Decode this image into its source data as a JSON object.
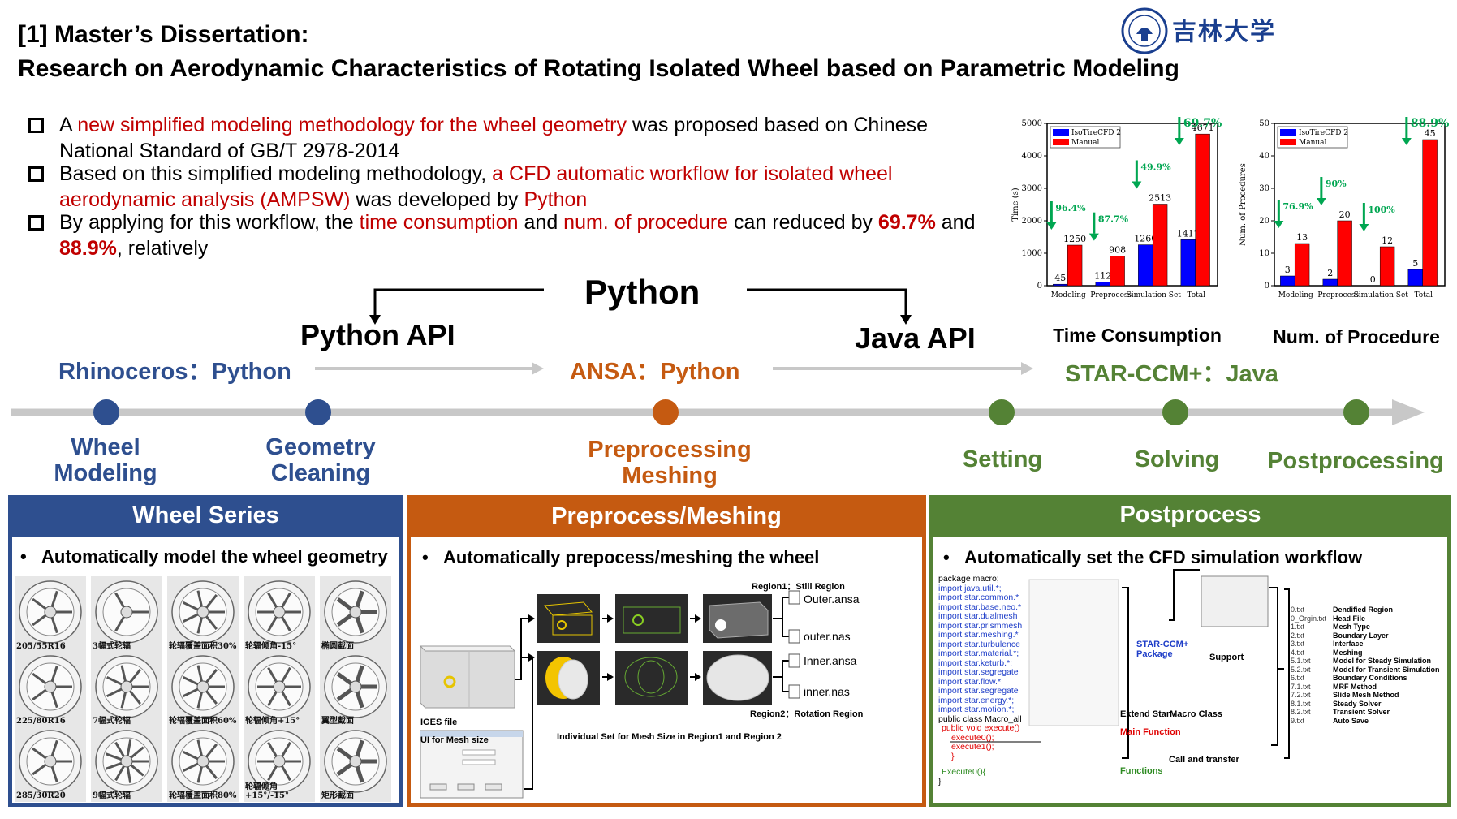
{
  "header": {
    "line1": "[1] Master’s Dissertation:",
    "line2": "Research on Aerodynamic Characteristics of Rotating Isolated Wheel based on Parametric Modeling",
    "logo_text": "吉林大学",
    "accent_color": "#1a3f8f"
  },
  "bullets": {
    "b1_a": "A ",
    "b1_red": "new simplified modeling methodology for the wheel geometry",
    "b1_b": " was proposed based on Chinese National Standard of GB/T 2978-2014",
    "b2_a": "Based on this simplified modeling methodology, ",
    "b2_red": "a CFD automatic workflow for isolated wheel aerodynamic analysis (AMPSW)",
    "b2_b": " was developed by ",
    "b2_red2": "Python",
    "b3_a": "By applying for this workflow, the ",
    "b3_red": "time consumption",
    "b3_b": " and ",
    "b3_red2": "num. of procedure",
    "b3_c": " can reduced by ",
    "b3_val1": "69.7%",
    "b3_d": " and ",
    "b3_val2": "88.9%",
    "b3_e": ", relatively"
  },
  "flow": {
    "python": "Python",
    "python_api": "Python API",
    "java_api": "Java API",
    "tool1": "Rhinoceros：Python",
    "tool2": "ANSA：Python",
    "tool3": "STAR-CCM+：Java",
    "stages": [
      "Wheel Modeling",
      "Geometry Cleaning",
      "Preprocessing Meshing",
      "Setting",
      "Solving",
      "Postprocessing"
    ],
    "colors": {
      "blue": "#2e4f8f",
      "orange": "#c55a11",
      "green": "#548235"
    }
  },
  "panels": {
    "wheel": {
      "title": "Wheel Series",
      "bullet": "Automatically model the wheel geometry",
      "labels": [
        "205/55R16",
        "3幅式轮辐",
        "轮辐覆盖面积30%",
        "轮辐倾角-15°",
        "椭圆截面",
        "225/80R16",
        "7幅式轮辐",
        "轮辐覆盖面积60%",
        "轮辐倾角+15°",
        "翼型截面",
        "285/30R20",
        "9幅式轮辐",
        "轮辐覆盖面积80%",
        "轮辐倾角 +15°/-15°",
        "矩形截面"
      ]
    },
    "mesh": {
      "title": "Preprocess/Meshing",
      "bullet": "Automatically prepocess/meshing the wheel",
      "region1": "Region1：Still Region",
      "region2": "Region2：Rotation Region",
      "files": [
        "Outer.ansa",
        "outer.nas",
        "Inner.ansa",
        "inner.nas"
      ],
      "iges": "IGES file",
      "ui_label": "UI for Mesh size",
      "caption": "Individual Set for Mesh Size in Region1 and Region 2"
    },
    "post": {
      "title": "Postprocess",
      "bullet": "Automatically set the CFD simulation workflow",
      "code": [
        "package macro;",
        "import java.util.*;",
        "import star.common.*",
        "import star.base.neo.*",
        "import star.dualmesh",
        "import star.prismmesh",
        "import star.meshing.*",
        "import star.turbulence",
        "import star.material.*;",
        "import star.keturb.*;",
        "import star.segregate",
        "import star.flow.*;",
        "import star.segregate",
        "import star.energy.*;",
        "import star.motion.*;",
        "public class Macro_all",
        "public void execute()",
        "execute0();",
        "execute1();",
        "}",
        "Execute0(){",
        "}"
      ],
      "package_label": "STAR-CCM+ Package",
      "support": "Support",
      "extend": "Extend StarMacro Class",
      "main_function": "Main Function",
      "functions": "Functions",
      "call": "Call and transfer",
      "file_list": [
        "0.txt",
        "0_Orgin.txt",
        "1.txt",
        "2.txt",
        "3.txt",
        "4.txt",
        "5.1.txt",
        "5.2.txt",
        "6.txt",
        "7.1.txt",
        "7.2.txt",
        "8.1.txt",
        "8.2.txt",
        "9.txt"
      ],
      "file_desc": [
        "Dendified Region",
        "Head File",
        "Mesh Type",
        "Boundary Layer",
        "Interface",
        "Meshing",
        "Model for Steady Simulation",
        "Model for Transient Simulation",
        "Boundary Conditions",
        "MRF Method",
        "Slide Mesh Method",
        "Steady Solver",
        "Transient Solver",
        "Auto Save"
      ]
    }
  },
  "chart_data": [
    {
      "type": "bar",
      "title": "Time Consumption",
      "ylabel": "Time (s)",
      "categories": [
        "Modeling",
        "Preprocess",
        "Simulation Set",
        "Total"
      ],
      "series": [
        {
          "name": "IsoTireCFD 2",
          "color": "#0000ff",
          "values": [
            45,
            112,
            1260,
            1417
          ]
        },
        {
          "name": "Manual",
          "color": "#ff0000",
          "values": [
            1250,
            908,
            2513,
            4671
          ]
        }
      ],
      "reductions": [
        "96.4%",
        "87.7%",
        "49.9%",
        "69.7%"
      ],
      "ylim": [
        0,
        5000
      ],
      "yticks": [
        0,
        1000,
        2000,
        3000,
        4000,
        5000
      ],
      "legend": "top-left"
    },
    {
      "type": "bar",
      "title": "Num. of Procedure",
      "ylabel": "Num. of Procedures",
      "categories": [
        "Modeling",
        "Preprocess",
        "Simulation Set",
        "Total"
      ],
      "series": [
        {
          "name": "IsoTireCFD 2",
          "color": "#0000ff",
          "values": [
            3,
            2,
            0,
            5
          ]
        },
        {
          "name": "Manual",
          "color": "#ff0000",
          "values": [
            13,
            20,
            12,
            45
          ]
        }
      ],
      "reductions": [
        "76.9%",
        "90%",
        "100%",
        "88.9%"
      ],
      "ylim": [
        0,
        50
      ],
      "yticks": [
        0,
        10,
        20,
        30,
        40,
        50
      ],
      "legend": "top-left"
    }
  ]
}
